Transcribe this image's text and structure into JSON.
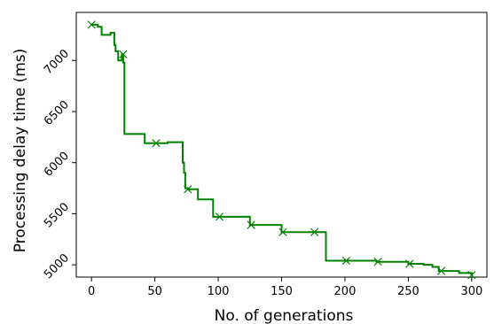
{
  "chart_data": {
    "type": "line",
    "title": "",
    "xlabel": "No. of generations",
    "ylabel": "Processing delay time (ms)",
    "xlim": [
      -12,
      312
    ],
    "ylim": [
      4880,
      7470
    ],
    "xticks": [
      0,
      50,
      100,
      150,
      200,
      250,
      300
    ],
    "yticks": [
      5000,
      5500,
      6000,
      6500,
      7000
    ],
    "grid": false,
    "legend": false,
    "colors": {
      "series": "#008000"
    },
    "series": [
      {
        "step_x": [
          0,
          5,
          8,
          15,
          18,
          19,
          21,
          24,
          25,
          26,
          27,
          42,
          51,
          60,
          72,
          73,
          74,
          76,
          84,
          96,
          100,
          125,
          149,
          150,
          185,
          201,
          225,
          250,
          262,
          269,
          274,
          290,
          300
        ],
        "step_y": [
          7350,
          7330,
          7250,
          7270,
          7150,
          7090,
          7000,
          7060,
          6980,
          6280,
          6280,
          6190,
          6190,
          6200,
          6000,
          5900,
          5750,
          5740,
          5640,
          5470,
          5470,
          5390,
          5390,
          5320,
          5040,
          5040,
          5030,
          5010,
          5000,
          4980,
          4940,
          4920,
          4900
        ],
        "marker_x": [
          0,
          25,
          51,
          76,
          101,
          126,
          151,
          176,
          201,
          226,
          251,
          276,
          300
        ],
        "marker_y": [
          7350,
          7060,
          6190,
          5740,
          5470,
          5390,
          5320,
          5320,
          5040,
          5030,
          5010,
          4940,
          4900
        ]
      }
    ]
  }
}
